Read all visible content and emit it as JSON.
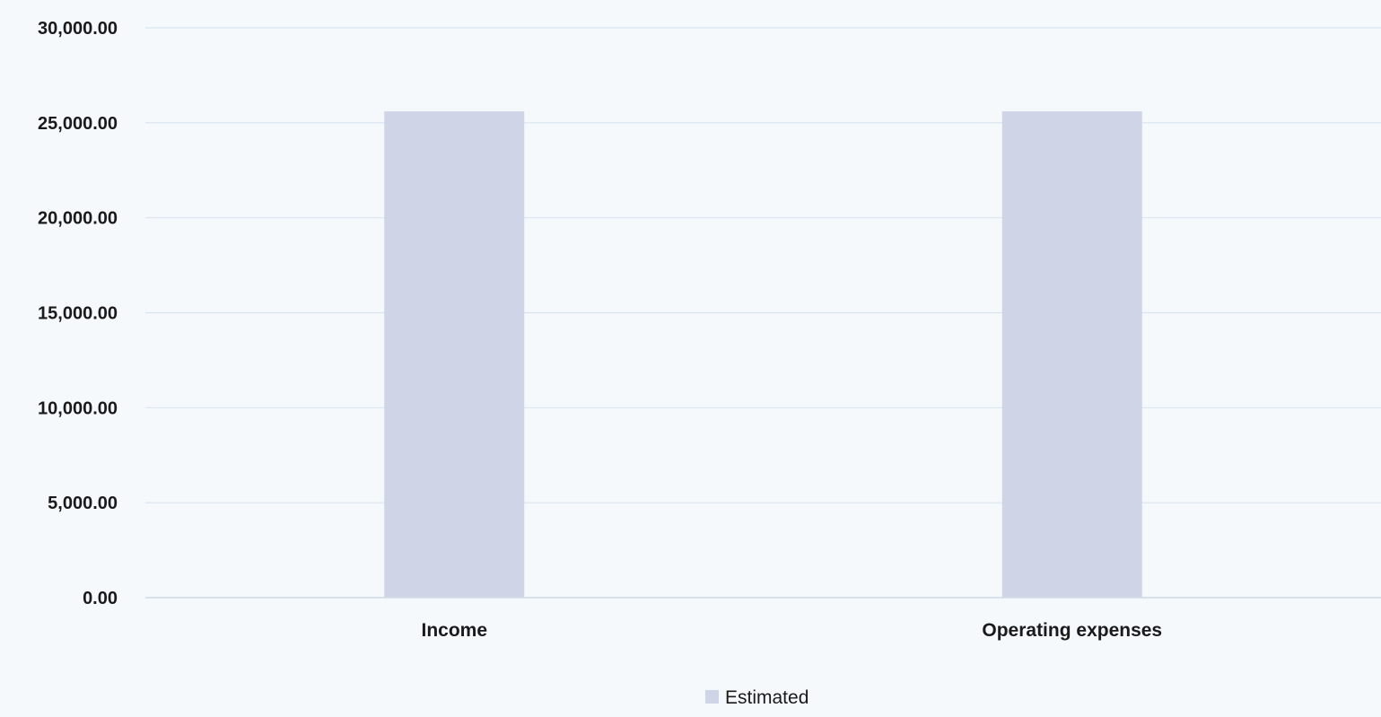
{
  "chart_data": {
    "type": "bar",
    "title": "",
    "xlabel": "",
    "ylabel": "",
    "categories": [
      "Income",
      "Operating expenses"
    ],
    "series": [
      {
        "name": "Estimated",
        "values": [
          25600,
          25600
        ],
        "color": "#cfd4e7"
      }
    ],
    "ylim": [
      0,
      30000
    ],
    "yticks": [
      0,
      5000,
      10000,
      15000,
      20000,
      25000,
      30000
    ],
    "ytick_labels": [
      "0.00",
      "5,000.00",
      "10,000.00",
      "15,000.00",
      "20,000.00",
      "25,000.00",
      "30,000.00"
    ],
    "grid": true,
    "legend": "bottom-center",
    "colors": {
      "background": "#f5f9fc",
      "gridline": "#d9e4ef",
      "axis": "#d0dbe6",
      "bar": "#cfd4e7",
      "text": "#1a1a1a"
    }
  }
}
